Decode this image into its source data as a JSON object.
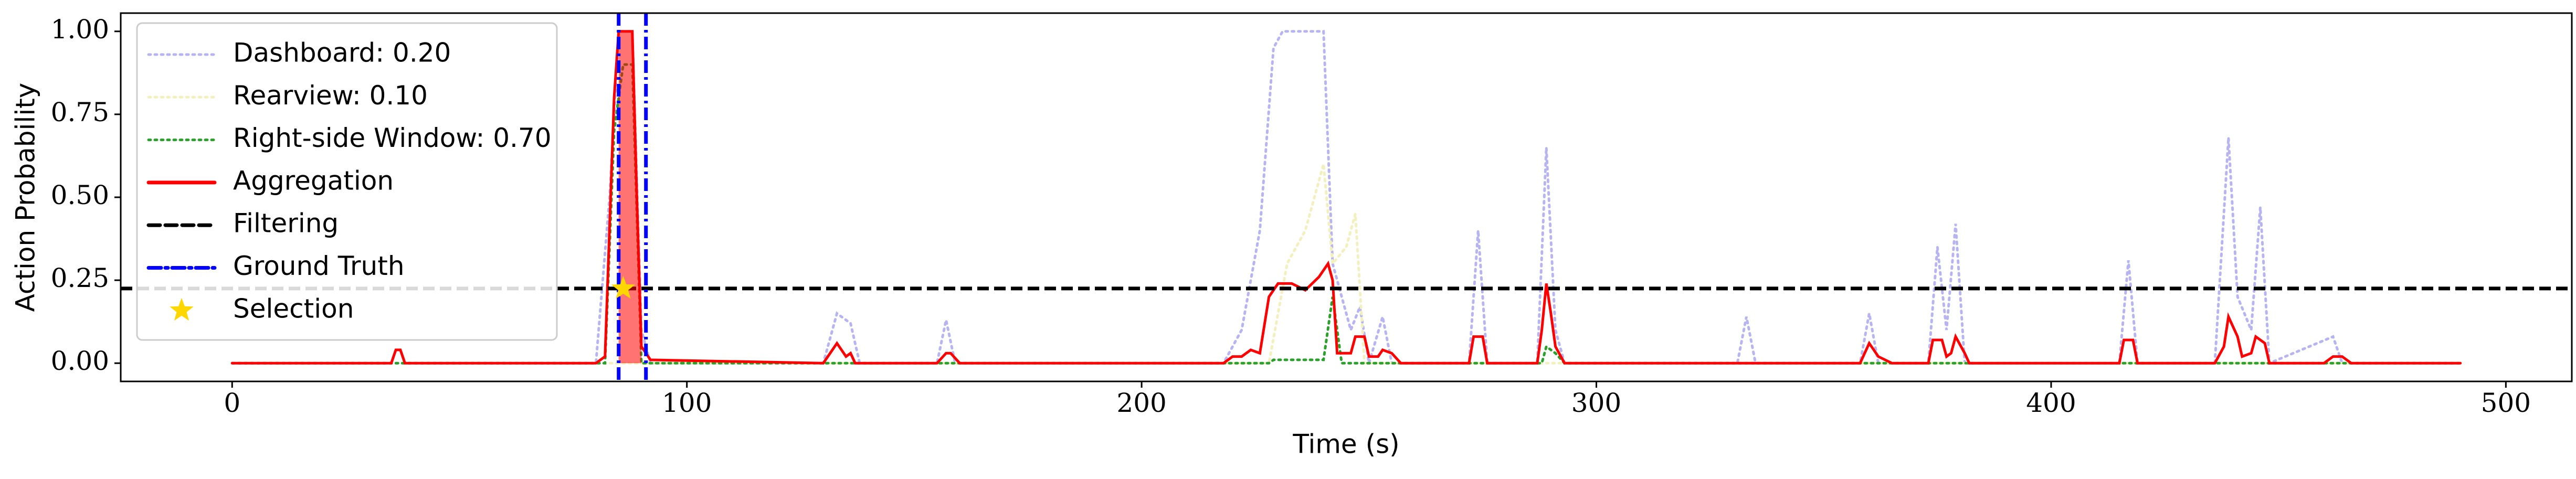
{
  "chart_data": {
    "type": "line",
    "xlabel": "Time (s)",
    "ylabel": "Action Probability",
    "xlim": [
      -24.5,
      514.5
    ],
    "xticks": [
      0,
      100,
      200,
      300,
      400,
      500
    ],
    "ylim": [
      -0.055,
      1.055
    ],
    "yticks": [
      {
        "value": 0,
        "label": "0.00"
      },
      {
        "value": 0.25,
        "label": "0.25"
      },
      {
        "value": 0.5,
        "label": "0.50"
      },
      {
        "value": 0.75,
        "label": "0.75"
      },
      {
        "value": 1,
        "label": "1.00"
      }
    ],
    "legend": "upper left",
    "series": [
      {
        "name": "Dashboard: 0.20",
        "color": "#b7b4f0",
        "style": "dotted",
        "x": [
          0,
          80,
          83,
          85,
          88,
          90,
          92,
          130,
          133,
          136,
          138,
          155,
          157,
          159,
          218,
          222,
          226,
          229,
          231,
          240,
          242,
          246,
          248,
          250,
          253,
          255,
          272,
          274,
          276,
          287,
          289,
          291,
          293,
          331,
          333,
          335,
          358,
          360,
          362,
          373,
          375,
          377,
          379,
          381,
          415,
          417,
          419,
          436,
          439,
          441,
          444,
          446,
          448,
          462,
          464,
          490
        ],
        "values": [
          0,
          0,
          0.5,
          1,
          1,
          0.1,
          0,
          0,
          0.15,
          0.12,
          0,
          0,
          0.13,
          0,
          0,
          0.1,
          0.4,
          0.95,
          1,
          1,
          0.3,
          0.1,
          0.17,
          0,
          0.14,
          0,
          0,
          0.4,
          0,
          0,
          0.65,
          0.1,
          0,
          0,
          0.14,
          0,
          0,
          0.15,
          0,
          0,
          0.35,
          0.1,
          0.42,
          0,
          0,
          0.31,
          0,
          0,
          0.68,
          0.2,
          0.1,
          0.47,
          0,
          0.08,
          0,
          0
        ]
      },
      {
        "name": "Rearview: 0.10",
        "color": "#f3f0c0",
        "style": "dotted",
        "x": [
          0,
          228,
          232,
          236,
          240,
          242,
          245,
          247,
          249,
          490
        ],
        "values": [
          0,
          0,
          0.3,
          0.4,
          0.6,
          0.3,
          0.35,
          0.45,
          0,
          0
        ]
      },
      {
        "name": "Right-side Window: 0.70",
        "color": "#2ca02c",
        "style": "dotted",
        "x": [
          0,
          82,
          84,
          86,
          88,
          90,
          228,
          229,
          240,
          242,
          244,
          288,
          289,
          291,
          293,
          490
        ],
        "values": [
          0,
          0,
          0.7,
          0.9,
          0.9,
          0,
          0,
          0.01,
          0.01,
          0.2,
          0,
          0,
          0.05,
          0.03,
          0,
          0
        ]
      },
      {
        "name": "Aggregation",
        "color": "#ff0000",
        "style": "solid",
        "x": [
          0,
          35,
          36,
          37,
          38,
          80,
          82,
          84,
          85,
          88,
          89,
          90,
          92,
          130,
          132,
          133,
          135,
          136,
          137,
          155,
          157,
          158,
          160,
          218,
          220,
          222,
          224,
          226,
          228,
          230,
          233,
          236,
          239,
          241,
          242,
          243,
          246,
          247,
          249,
          250,
          252,
          253,
          255,
          257,
          272,
          273,
          275,
          276,
          287,
          288,
          289,
          290,
          291,
          293,
          358,
          360,
          362,
          365,
          373,
          374,
          376,
          377,
          378,
          379,
          381,
          382,
          415,
          416,
          418,
          419,
          436,
          438,
          439,
          441,
          442,
          444,
          445,
          447,
          448,
          460,
          462,
          464,
          466,
          490
        ],
        "values": [
          0,
          0,
          0.04,
          0.04,
          0,
          0,
          0.02,
          0.8,
          1,
          1,
          0.5,
          0.05,
          0.01,
          0,
          0.04,
          0.06,
          0.02,
          0.03,
          0,
          0,
          0.03,
          0.03,
          0,
          0,
          0.02,
          0.02,
          0.04,
          0.03,
          0.2,
          0.24,
          0.24,
          0.22,
          0.26,
          0.3,
          0.25,
          0.03,
          0.03,
          0.08,
          0.08,
          0.02,
          0.02,
          0.04,
          0.03,
          0,
          0,
          0.08,
          0.08,
          0,
          0,
          0.1,
          0.24,
          0.15,
          0.05,
          0,
          0,
          0.06,
          0.02,
          0,
          0,
          0.07,
          0.07,
          0.02,
          0.03,
          0.08,
          0.03,
          0,
          0,
          0.07,
          0.07,
          0,
          0,
          0.05,
          0.14,
          0.08,
          0.02,
          0.03,
          0.08,
          0.06,
          0,
          0,
          0.02,
          0.02,
          0,
          0
        ]
      },
      {
        "name": "Filtering",
        "color": "#000000",
        "style": "dashed",
        "y": 0.225
      },
      {
        "name": "Ground Truth",
        "color": "#0000ff",
        "style": "dashdot",
        "x": [
          85,
          91
        ]
      },
      {
        "name": "Selection",
        "color": "#ffd700",
        "style": "star",
        "x": 86,
        "y": 0.225
      }
    ]
  }
}
